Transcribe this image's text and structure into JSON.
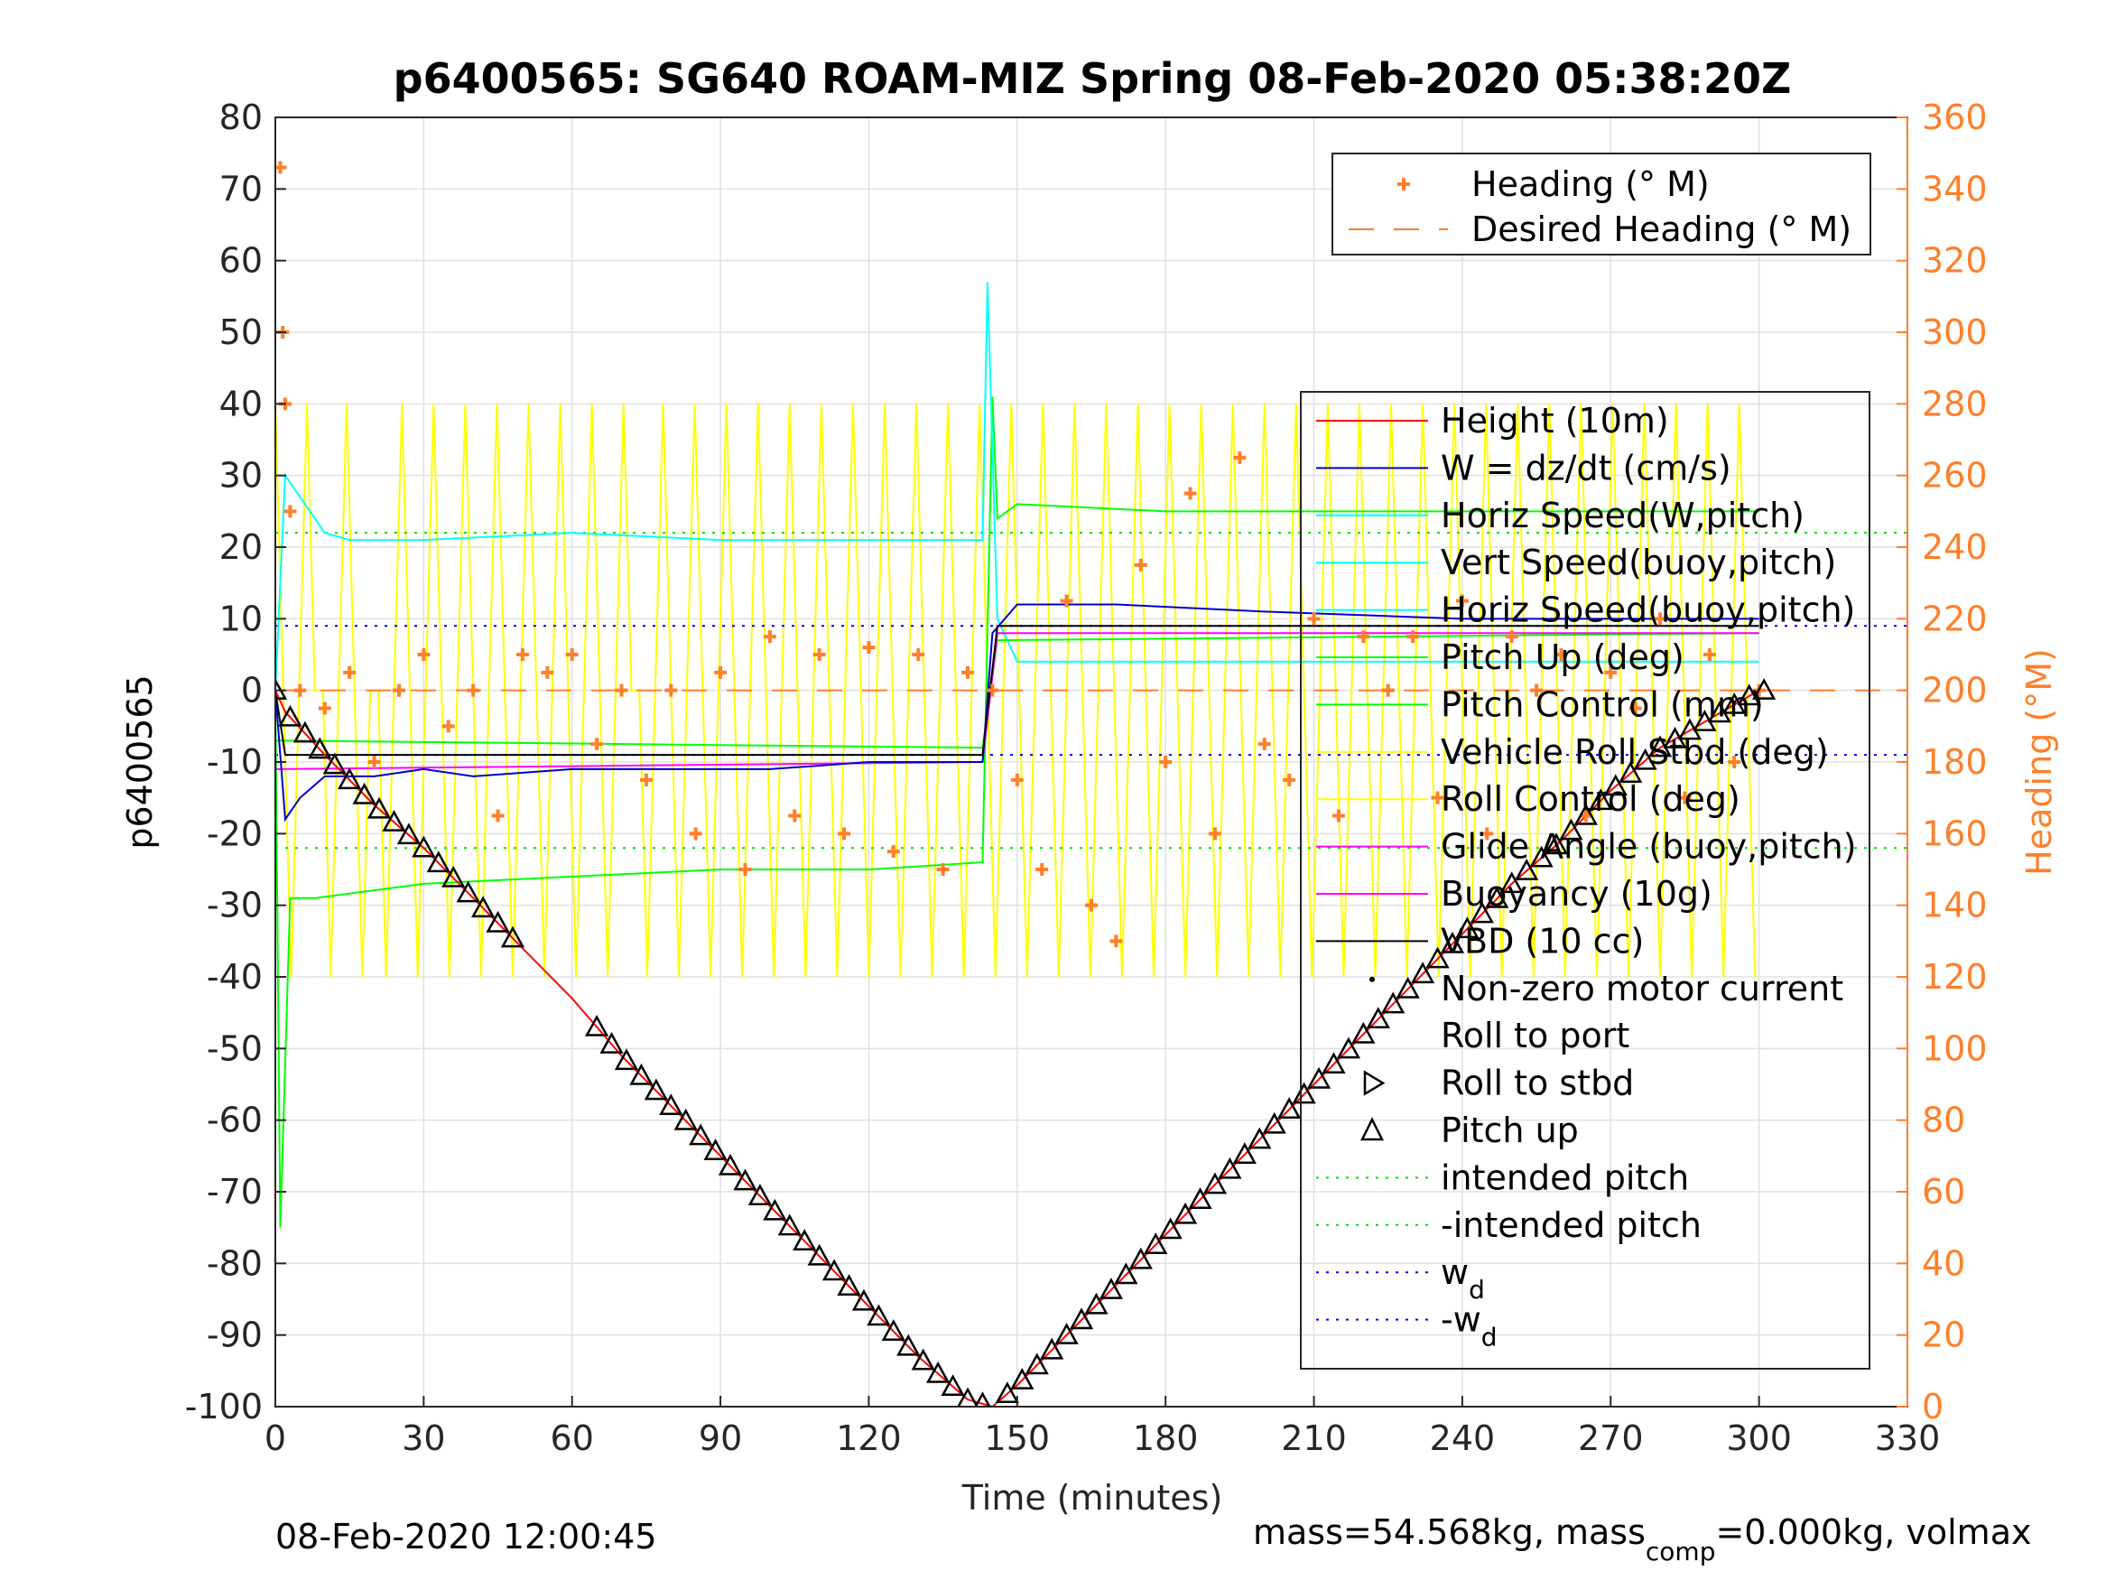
{
  "chart_data": {
    "type": "line",
    "title": "p6400565: SG640 ROAM-MIZ Spring 08-Feb-2020 05:38:20Z",
    "xlabel": "Time (minutes)",
    "ylabel": "p6400565",
    "ylabel_right": "Heading (°M)",
    "xlim": [
      0,
      330
    ],
    "ylim": [
      -100,
      80
    ],
    "ylim_right": [
      0,
      360
    ],
    "xticks": [
      0,
      30,
      60,
      90,
      120,
      150,
      180,
      210,
      240,
      270,
      300,
      330
    ],
    "yticks": [
      -100,
      -90,
      -80,
      -70,
      -60,
      -50,
      -40,
      -30,
      -20,
      -10,
      0,
      10,
      20,
      30,
      40,
      50,
      60,
      70,
      80
    ],
    "yticks_right": [
      0,
      20,
      40,
      60,
      80,
      100,
      120,
      140,
      160,
      180,
      200,
      220,
      240,
      260,
      280,
      300,
      320,
      340,
      360
    ],
    "grid": true,
    "colors": {
      "height": "#ff0000",
      "w": "#0000cc",
      "horiz_speed": "#00ffff",
      "pitch_control": "#00ff00",
      "roll": "#ffff00",
      "heading": "#ff7f2a",
      "buoyancy": "#ff00ff",
      "vbd": "#000000",
      "intended_pitch": "#00e000",
      "wd": "#0000ff",
      "right_axis": "#ff7f2a"
    },
    "legend_top": {
      "position": "top-right",
      "entries": [
        "Heading (° M)",
        "Desired Heading (° M)"
      ]
    },
    "legend_main": {
      "position": "right",
      "entries": [
        "Height (10m)",
        "W = dz/dt (cm/s)",
        "Horiz Speed(W,pitch)",
        "Vert Speed(buoy,pitch)",
        "Horiz Speed(buoy,pitch)",
        "Pitch Up (deg)",
        "Pitch Control (mm)",
        "Vehicle Roll Stbd (deg)",
        "Roll Control (deg)",
        "Glide Angle (buoy,pitch)",
        "Buoyancy (10g)",
        "VBD (10 cc)",
        "Non-zero motor current",
        "Roll to port",
        "Roll to stbd",
        "Pitch up",
        "intended pitch",
        "-intended pitch",
        "w",
        "-w"
      ],
      "subscript": "d"
    },
    "series": {
      "height": {
        "x": [
          0,
          2,
          10,
          20,
          30,
          40,
          50,
          60,
          70,
          80,
          90,
          100,
          110,
          120,
          130,
          140,
          145,
          150,
          160,
          170,
          180,
          190,
          200,
          210,
          220,
          230,
          240,
          250,
          260,
          270,
          280,
          290,
          300
        ],
        "y": [
          0,
          -3,
          -9,
          -16,
          -22,
          -29,
          -36,
          -43,
          -51,
          -58,
          -65,
          -72,
          -79,
          -86,
          -93,
          -99,
          -100,
          -97,
          -90,
          -83,
          -76,
          -69,
          -62,
          -55,
          -48,
          -41,
          -34,
          -27,
          -21,
          -14,
          -8,
          -4,
          0
        ]
      },
      "w": {
        "x": [
          0,
          2,
          5,
          10,
          20,
          30,
          40,
          60,
          80,
          100,
          120,
          143,
          145,
          150,
          170,
          200,
          240,
          280,
          300
        ],
        "y": [
          0,
          -18,
          -15,
          -12,
          -12,
          -11,
          -12,
          -11,
          -11,
          -11,
          -10,
          -10,
          8,
          12,
          12,
          11,
          10,
          10,
          10
        ]
      },
      "horiz_speed": {
        "x": [
          0,
          2,
          5,
          10,
          15,
          30,
          60,
          90,
          120,
          143,
          144,
          146,
          150,
          180,
          240,
          300
        ],
        "y": [
          0,
          30,
          27,
          22,
          21,
          21,
          22,
          21,
          21,
          21,
          57,
          10,
          4,
          4,
          4,
          4
        ]
      },
      "pitch_control": {
        "x": [
          0,
          1,
          3,
          8,
          30,
          60,
          90,
          120,
          143,
          145,
          146,
          150,
          180,
          240,
          300
        ],
        "y": [
          0,
          -75,
          -29,
          -29,
          -27,
          -26,
          -25,
          -25,
          -24,
          41,
          24,
          26,
          25,
          25,
          25
        ]
      },
      "vbd": {
        "x": [
          0,
          2,
          10,
          143,
          146,
          300
        ],
        "y": [
          0,
          -9,
          -9,
          -9,
          9,
          9
        ]
      },
      "pitch_up": {
        "x": [
          0,
          143,
          146,
          300
        ],
        "y": [
          -7,
          -8,
          7,
          8
        ]
      },
      "buoyancy": {
        "x": [
          0,
          143,
          146,
          300
        ],
        "y": [
          -11,
          -10,
          8,
          8
        ]
      },
      "heading": {
        "x": [
          1,
          1.5,
          2,
          3,
          5,
          10,
          15,
          20,
          25,
          30,
          35,
          40,
          45,
          50,
          55,
          60,
          65,
          70,
          75,
          80,
          85,
          90,
          95,
          100,
          105,
          110,
          115,
          120,
          125,
          130,
          135,
          140,
          145,
          150,
          155,
          160,
          165,
          170,
          175,
          180,
          185,
          190,
          195,
          200,
          205,
          210,
          215,
          220,
          225,
          230,
          235,
          240,
          245,
          250,
          255,
          260,
          265,
          270,
          275,
          280,
          285,
          290,
          295,
          300
        ],
        "y": [
          346,
          300,
          280,
          250,
          200,
          195,
          205,
          180,
          200,
          210,
          190,
          200,
          165,
          210,
          205,
          210,
          185,
          200,
          175,
          200,
          160,
          205,
          150,
          215,
          165,
          210,
          160,
          212,
          155,
          210,
          150,
          205,
          200,
          175,
          150,
          225,
          140,
          130,
          235,
          180,
          255,
          160,
          265,
          185,
          175,
          220,
          165,
          215,
          200,
          215,
          170,
          225,
          160,
          215,
          200,
          210,
          165,
          205,
          195,
          220,
          170,
          210,
          180,
          200
        ]
      },
      "desired_heading": {
        "value": 200
      },
      "intended_pitch": {
        "values": [
          22,
          -22
        ]
      },
      "wd": {
        "values": [
          9,
          -9
        ]
      },
      "triangle_segments": [
        [
          0,
          50
        ],
        [
          65,
          145
        ],
        [
          148,
          301
        ]
      ]
    },
    "footer_left": "08-Feb-2020 12:00:45",
    "footer_right_prefix": "mass=54.568kg, mass",
    "footer_right_sub": "comp",
    "footer_right_suffix": "=0.000kg, volmax"
  }
}
